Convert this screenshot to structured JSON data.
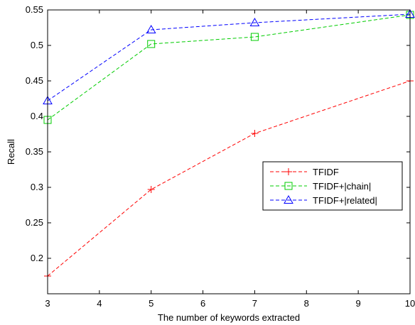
{
  "chart_data": {
    "type": "line",
    "title": "",
    "xlabel": "The number of keywords extracted",
    "ylabel": "Recall",
    "x": [
      3,
      5,
      7,
      10
    ],
    "xlim": [
      3,
      10
    ],
    "ylim": [
      0.15,
      0.55
    ],
    "xticks": [
      "3",
      "4",
      "5",
      "6",
      "7",
      "8",
      "9",
      "10"
    ],
    "yticks": [
      "0.2",
      "0.25",
      "0.3",
      "0.35",
      "0.4",
      "0.45",
      "0.5",
      "0.55"
    ],
    "grid": false,
    "legend_position": "center-right",
    "series": [
      {
        "name": "TFIDF",
        "values": [
          0.175,
          0.297,
          0.376,
          0.45
        ],
        "color": "#ff0000",
        "marker": "plus",
        "line_style": "dashed"
      },
      {
        "name": "TFIDF+|chain|",
        "values": [
          0.395,
          0.502,
          0.512,
          0.543
        ],
        "color": "#00cc00",
        "marker": "square",
        "line_style": "dashed"
      },
      {
        "name": "TFIDF+|related|",
        "values": [
          0.422,
          0.522,
          0.532,
          0.544
        ],
        "color": "#0000ff",
        "marker": "triangle",
        "line_style": "dashed"
      }
    ]
  }
}
